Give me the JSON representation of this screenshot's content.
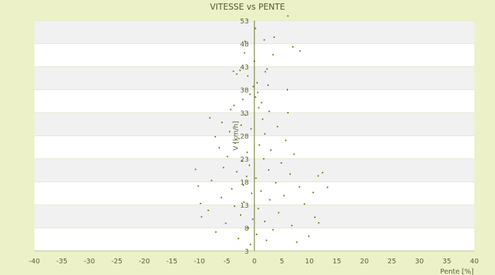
{
  "chart_data": {
    "type": "scatter",
    "title": "VITESSE vs PENTE",
    "xlabel": "Pente [%]",
    "ylabel": "V [km/h]",
    "xlim": [
      -40,
      40
    ],
    "ylim": [
      3,
      53
    ],
    "x_ticks": [
      -40,
      -35,
      -30,
      -25,
      -20,
      -15,
      -10,
      -5,
      0,
      5,
      10,
      15,
      20,
      25,
      30,
      35,
      40
    ],
    "y_ticks": [
      3,
      8,
      13,
      18,
      23,
      28,
      33,
      38,
      43,
      48,
      53
    ],
    "grid": "horizontal alternating bands",
    "colors": {
      "background": "#ecf1c8",
      "band_light": "#ffffff",
      "band_dark": "#f1f1f1",
      "point": "#6b7a14",
      "axis": "#5f6a18"
    },
    "series": [
      {
        "points": [
          [
            6.1,
            54.0
          ],
          [
            0.2,
            51.3
          ],
          [
            3.6,
            49.4
          ],
          [
            1.8,
            48.8
          ],
          [
            -1.7,
            48.5
          ],
          [
            7.0,
            47.3
          ],
          [
            8.3,
            46.4
          ],
          [
            -1.8,
            46.0
          ],
          [
            3.4,
            45.6
          ],
          [
            0.0,
            44.2
          ],
          [
            2.3,
            42.5
          ],
          [
            -2.6,
            42.2
          ],
          [
            -3.8,
            42.0
          ],
          [
            2.0,
            41.9
          ],
          [
            -3.2,
            41.4
          ],
          [
            -1.2,
            41.0
          ],
          [
            0.5,
            39.5
          ],
          [
            2.5,
            39.0
          ],
          [
            -0.2,
            38.7
          ],
          [
            6.0,
            38.0
          ],
          [
            0.6,
            37.4
          ],
          [
            -0.8,
            37.0
          ],
          [
            0.2,
            36.4
          ],
          [
            -2.1,
            35.9
          ],
          [
            1.3,
            35.2
          ],
          [
            -3.7,
            34.6
          ],
          [
            0.8,
            34.1
          ],
          [
            -4.3,
            33.7
          ],
          [
            2.7,
            33.3
          ],
          [
            6.1,
            33.0
          ],
          [
            -1.7,
            32.5
          ],
          [
            -8.1,
            31.9
          ],
          [
            1.5,
            31.6
          ],
          [
            -5.9,
            30.9
          ],
          [
            -2.4,
            30.3
          ],
          [
            4.2,
            30.0
          ],
          [
            -0.6,
            29.5
          ],
          [
            -4.5,
            28.9
          ],
          [
            1.9,
            28.4
          ],
          [
            -7.1,
            27.8
          ],
          [
            -2.8,
            27.4
          ],
          [
            5.7,
            27.0
          ],
          [
            -3.5,
            26.4
          ],
          [
            0.9,
            26.0
          ],
          [
            -6.4,
            25.4
          ],
          [
            3.0,
            24.9
          ],
          [
            -1.3,
            24.4
          ],
          [
            7.2,
            24.0
          ],
          [
            -4.9,
            23.5
          ],
          [
            1.7,
            23.0
          ],
          [
            -2.2,
            22.5
          ],
          [
            4.9,
            22.1
          ],
          [
            -0.9,
            21.6
          ],
          [
            -5.6,
            21.1
          ],
          [
            2.6,
            20.6
          ],
          [
            -3.2,
            20.2
          ],
          [
            6.5,
            19.7
          ],
          [
            -1.4,
            19.2
          ],
          [
            0.3,
            18.8
          ],
          [
            -7.8,
            18.3
          ],
          [
            3.9,
            17.8
          ],
          [
            -2.0,
            17.3
          ],
          [
            8.2,
            16.9
          ],
          [
            -4.1,
            16.5
          ],
          [
            1.2,
            16.0
          ],
          [
            -0.5,
            15.5
          ],
          [
            5.4,
            15.0
          ],
          [
            -6.0,
            14.6
          ],
          [
            2.8,
            14.1
          ],
          [
            -1.9,
            13.6
          ],
          [
            9.1,
            13.2
          ],
          [
            -3.6,
            12.7
          ],
          [
            0.7,
            12.2
          ],
          [
            -8.4,
            11.8
          ],
          [
            4.4,
            11.3
          ],
          [
            -2.5,
            10.8
          ],
          [
            11.0,
            10.3
          ],
          [
            -0.3,
            9.9
          ],
          [
            1.9,
            9.4
          ],
          [
            -5.2,
            9.0
          ],
          [
            6.8,
            8.5
          ],
          [
            -1.1,
            8.0
          ],
          [
            3.4,
            7.6
          ],
          [
            -7.0,
            7.1
          ],
          [
            0.4,
            6.6
          ],
          [
            9.9,
            6.2
          ],
          [
            -2.9,
            5.7
          ],
          [
            2.2,
            5.3
          ],
          [
            7.7,
            4.9
          ],
          [
            -0.7,
            4.4
          ],
          [
            12.4,
            20.0
          ],
          [
            11.6,
            19.3
          ],
          [
            13.3,
            16.8
          ],
          [
            -10.7,
            20.7
          ],
          [
            -9.8,
            13.3
          ],
          [
            -9.6,
            10.4
          ],
          [
            10.7,
            15.7
          ],
          [
            -10.2,
            17.1
          ],
          [
            11.7,
            9.1
          ]
        ]
      }
    ]
  }
}
